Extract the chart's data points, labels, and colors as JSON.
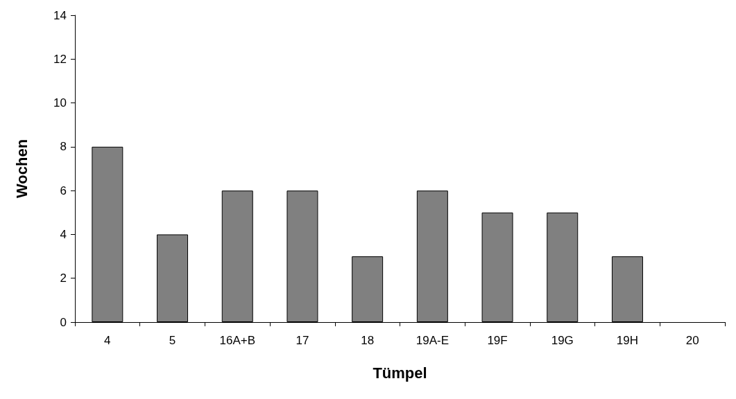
{
  "chart_data": {
    "type": "bar",
    "xlabel": "Tümpel",
    "ylabel": "Wochen",
    "categories": [
      "4",
      "5",
      "16A+B",
      "17",
      "18",
      "19A-E",
      "19F",
      "19G",
      "19H",
      "20"
    ],
    "values": [
      8,
      4,
      6,
      6,
      3,
      6,
      5,
      5,
      3,
      0
    ],
    "color": "#808080",
    "ylim": [
      0,
      14
    ],
    "yticks": [
      0,
      2,
      4,
      6,
      8,
      10,
      12,
      14
    ]
  }
}
